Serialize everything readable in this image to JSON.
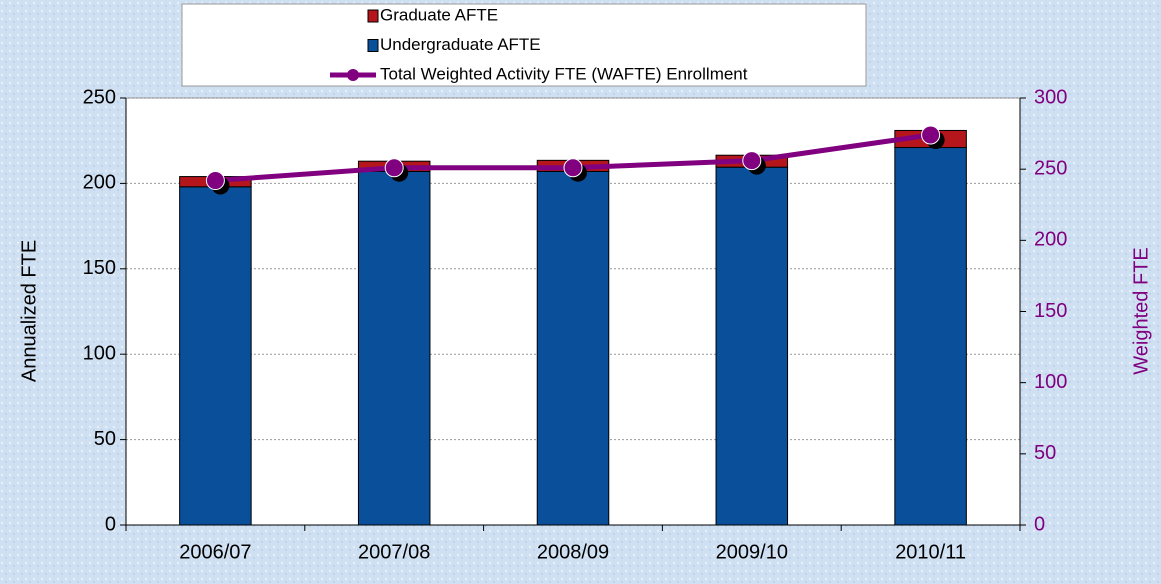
{
  "chart_data": {
    "type": "bar",
    "stacked": true,
    "categories": [
      "2006/07",
      "2007/08",
      "2008/09",
      "2009/10",
      "2010/11"
    ],
    "series": [
      {
        "name": "Undergraduate AFTE",
        "color": "#0a4f9a",
        "axis": "y",
        "values": [
          198,
          207,
          207,
          209.5,
          221
        ]
      },
      {
        "name": "Graduate AFTE",
        "color": "#b4161c",
        "axis": "y",
        "values": [
          6,
          6,
          6.5,
          7,
          10
        ]
      },
      {
        "name": "Total Weighted Activity FTE (WAFTE) Enrollment",
        "color": "#800080",
        "axis": "y2",
        "type": "line",
        "values": [
          242,
          251,
          251,
          256,
          274
        ]
      }
    ],
    "ylabel": "Annualized FTE",
    "y2label": "Weighted FTE",
    "ylim": [
      0,
      250
    ],
    "yticks": [
      0,
      50,
      100,
      150,
      200,
      250
    ],
    "y2lim": [
      0,
      300
    ],
    "y2ticks": [
      0,
      50,
      100,
      150,
      200,
      250,
      300
    ],
    "grid": true,
    "legend": "top"
  }
}
